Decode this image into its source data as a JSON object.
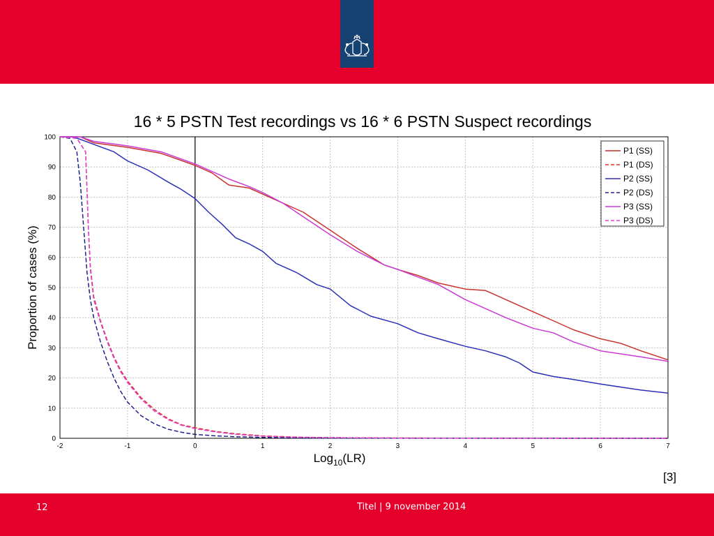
{
  "slide": {
    "page_number": "12",
    "footer_text": "Titel | 9 november 2014",
    "reference": "[3]",
    "colors": {
      "band": "#e4002b",
      "logo_bg": "#154273"
    },
    "logo_icon": "dutch-government-coat-of-arms-icon"
  },
  "chart_data": {
    "type": "line",
    "title": "16 * 5 PSTN Test recordings vs 16 * 6 PSTN Suspect recordings",
    "xlabel_base": "Log",
    "xlabel_sub": "10",
    "xlabel_rest": "(LR)",
    "ylabel": "Proportion of cases (%)",
    "xlim": [
      -2,
      7
    ],
    "ylim": [
      0,
      100
    ],
    "xticks": [
      -2,
      -1,
      0,
      1,
      2,
      3,
      4,
      5,
      6,
      7
    ],
    "yticks": [
      0,
      10,
      20,
      30,
      40,
      50,
      60,
      70,
      80,
      90,
      100
    ],
    "grid": true,
    "legend_position": "top-right",
    "reference_line_x": 0,
    "series": [
      {
        "name": "P1 (SS)",
        "color": "#c8322e",
        "dash": false,
        "x": [
          -2,
          -1.7,
          -1.5,
          -1,
          -0.5,
          0,
          0.25,
          0.5,
          0.8,
          1,
          1.3,
          1.6,
          2,
          2.4,
          2.8,
          3,
          3.3,
          3.6,
          4,
          4.3,
          4.6,
          5,
          5.3,
          5.6,
          6,
          6.3,
          6.6,
          7
        ],
        "y": [
          100,
          100,
          98,
          96.5,
          94.5,
          90.5,
          88,
          84,
          83,
          81,
          78,
          75,
          69,
          63,
          57.5,
          56,
          54,
          51.5,
          49.5,
          49,
          46,
          42,
          39,
          36,
          33,
          31.5,
          29,
          26
        ]
      },
      {
        "name": "P1 (DS)",
        "color": "#e0302a",
        "dash": true,
        "x": [
          -2,
          -1.75,
          -1.62,
          -1.58,
          -1.55,
          -1.5,
          -1.4,
          -1.3,
          -1.2,
          -1.1,
          -1,
          -0.8,
          -0.6,
          -0.4,
          -0.2,
          0,
          0.3,
          0.6,
          1,
          1.5,
          2,
          3,
          4,
          5,
          6,
          7
        ],
        "y": [
          100,
          99.5,
          95,
          70,
          57,
          47,
          39,
          32.5,
          27,
          22.5,
          19,
          13.5,
          9.5,
          6.5,
          4.5,
          3.5,
          2.3,
          1.5,
          0.8,
          0.4,
          0.2,
          0.1,
          0.05,
          0.03,
          0.02,
          0.01
        ]
      },
      {
        "name": "P2 (SS)",
        "color": "#2b2fb8",
        "dash": false,
        "x": [
          -2,
          -1.8,
          -1.5,
          -1.2,
          -1,
          -0.7,
          -0.4,
          -0.2,
          0,
          0.2,
          0.4,
          0.6,
          0.8,
          1,
          1.2,
          1.5,
          1.8,
          2,
          2.3,
          2.6,
          3,
          3.3,
          3.6,
          4,
          4.3,
          4.6,
          4.8,
          5,
          5.3,
          5.6,
          6,
          6.3,
          6.6,
          7
        ],
        "y": [
          100,
          100,
          97.5,
          95,
          92,
          89,
          85,
          82.5,
          79.5,
          75,
          71,
          66.5,
          64.5,
          62,
          58,
          55,
          51,
          49.5,
          44,
          40.5,
          38,
          35,
          33,
          30.5,
          29,
          27,
          25,
          22,
          20.5,
          19.5,
          18,
          17,
          16,
          15
        ]
      },
      {
        "name": "P2 (DS)",
        "color": "#20208a",
        "dash": true,
        "x": [
          -2,
          -1.85,
          -1.75,
          -1.7,
          -1.65,
          -1.6,
          -1.55,
          -1.5,
          -1.4,
          -1.3,
          -1.2,
          -1.1,
          -1,
          -0.8,
          -0.6,
          -0.4,
          -0.2,
          0,
          0.3,
          0.6,
          1,
          1.5,
          2,
          3,
          4,
          5,
          6,
          7
        ],
        "y": [
          100,
          99.5,
          95,
          85,
          70,
          55,
          46,
          40,
          32,
          25.5,
          20,
          15.5,
          12,
          7.5,
          4.8,
          3,
          2,
          1.3,
          0.8,
          0.5,
          0.3,
          0.15,
          0.1,
          0.05,
          0.03,
          0.02,
          0.01,
          0
        ]
      },
      {
        "name": "P3 (SS)",
        "color": "#c93ad4",
        "dash": false,
        "x": [
          -2,
          -1.7,
          -1.5,
          -1,
          -0.5,
          0,
          0.25,
          0.5,
          0.8,
          1,
          1.3,
          1.6,
          2,
          2.4,
          2.8,
          3,
          3.3,
          3.6,
          4,
          4.3,
          4.6,
          5,
          5.3,
          5.6,
          6,
          6.3,
          6.6,
          7
        ],
        "y": [
          100,
          100,
          98.5,
          97,
          95,
          91,
          88.5,
          86,
          83.5,
          81.5,
          78,
          73.5,
          67.5,
          62,
          57.5,
          56,
          53.5,
          51,
          46,
          43,
          40,
          36.5,
          35,
          32,
          29,
          28,
          27,
          25.5
        ]
      },
      {
        "name": "P3 (DS)",
        "color": "#e040d0",
        "dash": true,
        "x": [
          -2,
          -1.75,
          -1.62,
          -1.58,
          -1.55,
          -1.5,
          -1.4,
          -1.3,
          -1.2,
          -1.1,
          -1,
          -0.8,
          -0.6,
          -0.4,
          -0.2,
          0,
          0.3,
          0.6,
          1,
          1.5,
          2,
          3,
          4,
          5,
          6,
          7
        ],
        "y": [
          100,
          99.5,
          95,
          70,
          56,
          46,
          38.5,
          32,
          26.5,
          22,
          18.5,
          13,
          9,
          6.2,
          4.3,
          3.2,
          2.1,
          1.3,
          0.7,
          0.35,
          0.2,
          0.1,
          0.05,
          0.03,
          0.02,
          0.01
        ]
      }
    ]
  }
}
